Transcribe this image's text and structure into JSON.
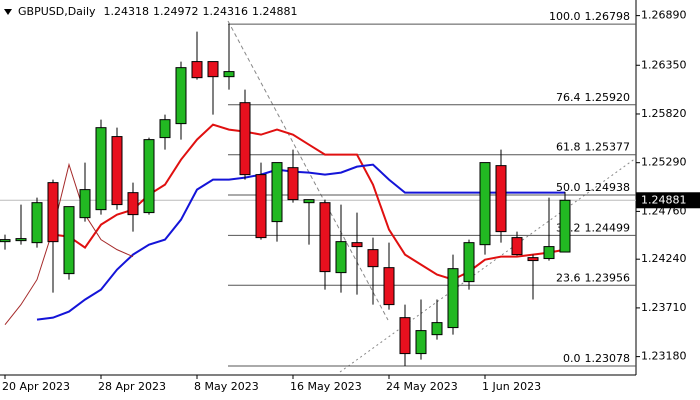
{
  "chart_data": {
    "type": "candlestick",
    "symbol": "GBPUSD,Daily",
    "categories": [
      "20 Apr 2023",
      null,
      null,
      null,
      null,
      null,
      "28 Apr 2023",
      null,
      null,
      null,
      null,
      null,
      "8 May 2023",
      null,
      null,
      null,
      null,
      null,
      "16 May 2023",
      null,
      null,
      null,
      null,
      null,
      "24 May 2023",
      null,
      null,
      null,
      null,
      null,
      "1 Jun 2023",
      null,
      null,
      null,
      null,
      null
    ],
    "open": [
      1.24431,
      1.24442,
      1.2442,
      1.25073,
      1.24083,
      1.24692,
      1.24779,
      1.25574,
      1.24964,
      1.24747,
      1.25563,
      1.25715,
      1.2639,
      1.2639,
      1.26226,
      1.25943,
      1.2516,
      1.24649,
      1.25236,
      1.24855,
      1.24855,
      1.24094,
      1.2442,
      1.24344,
      1.24148,
      1.23604,
      1.23213,
      1.23419,
      1.23496,
      1.23996,
      1.24398,
      1.25258,
      1.24475,
      1.24257,
      1.24247,
      1.24318
    ],
    "high": [
      1.24507,
      1.24834,
      1.2491,
      1.25106,
      1.24812,
      1.25291,
      1.25758,
      1.25671,
      1.25073,
      1.25563,
      1.25813,
      1.2639,
      1.26716,
      1.2639,
      1.26798,
      1.26085,
      1.25291,
      1.25291,
      1.25432,
      1.24888,
      1.24888,
      1.24834,
      1.24747,
      1.24475,
      1.2442,
      1.23746,
      1.23801,
      1.23801,
      1.2429,
      1.24453,
      1.25291,
      1.25432,
      1.2454,
      1.2429,
      1.2491,
      1.24972
    ],
    "low": [
      1.24344,
      1.24398,
      1.24366,
      1.23876,
      1.24018,
      1.24649,
      1.24725,
      1.24779,
      1.2454,
      1.24725,
      1.25432,
      1.25541,
      1.26194,
      1.25813,
      1.26085,
      1.25106,
      1.24453,
      1.24431,
      1.24855,
      1.24398,
      1.23909,
      1.23876,
      1.23855,
      1.23746,
      1.23691,
      1.23078,
      1.23147,
      1.23365,
      1.23419,
      1.23909,
      1.2429,
      1.2442,
      1.24279,
      1.23801,
      1.24225,
      1.24316
    ],
    "close": [
      1.24453,
      1.24464,
      1.24855,
      1.24431,
      1.24812,
      1.24997,
      1.25671,
      1.24834,
      1.24725,
      1.25541,
      1.25758,
      1.26324,
      1.26215,
      1.26226,
      1.26281,
      1.2516,
      1.24475,
      1.25291,
      1.24888,
      1.24888,
      1.24105,
      1.24431,
      1.24377,
      1.24159,
      1.23746,
      1.23213,
      1.23463,
      1.2355,
      1.24137,
      1.2442,
      1.25291,
      1.2454,
      1.2429,
      1.24225,
      1.24377,
      1.24881
    ],
    "up_color": "#22b822",
    "down_color": "#e8101e",
    "lines": [
      {
        "color": "#e01010",
        "values": [
          null,
          null,
          null,
          1.24507,
          1.24486,
          1.24366,
          1.24616,
          1.24725,
          1.24779,
          1.24942,
          1.25051,
          1.25323,
          1.25541,
          1.25704,
          1.2565,
          1.25628,
          1.25595,
          1.2565,
          1.25595,
          1.25486,
          1.25378,
          1.25378,
          1.25378,
          1.25051,
          1.24562,
          1.2429,
          1.24181,
          1.24072,
          1.24018,
          1.24105,
          1.24235,
          1.24268,
          1.24268,
          1.2429,
          1.24311,
          1.24344
        ]
      },
      {
        "color": "#1414d8",
        "values": [
          null,
          null,
          1.23582,
          1.23604,
          1.2367,
          1.238,
          1.23909,
          1.24126,
          1.2429,
          1.24398,
          1.24453,
          1.2467,
          1.24997,
          1.25106,
          1.25106,
          1.25127,
          1.2516,
          1.25214,
          1.25193,
          1.25182,
          1.2516,
          1.25182,
          1.25247,
          1.25269,
          1.25106,
          1.24964,
          1.24964,
          1.24964,
          1.24964,
          1.24964,
          1.24964,
          1.24964,
          1.24964,
          1.24964,
          1.24964,
          1.24964
        ]
      },
      {
        "color": "#a52a2a",
        "values": [
          1.23528,
          1.23746,
          1.24018,
          1.24562,
          1.25269,
          1.24725,
          1.24453,
          1.24344,
          1.24268,
          null,
          null,
          null,
          null,
          null,
          null,
          null,
          null,
          null,
          null,
          null,
          null,
          null,
          null,
          null,
          null,
          null,
          null,
          null,
          null,
          null,
          null,
          null,
          null,
          null,
          null,
          null
        ]
      }
    ],
    "fib_levels": [
      {
        "level": "100.0",
        "value": 1.26798
      },
      {
        "level": "76.4",
        "value": {
          "value": 1.2592,
          "label": "1.25920"
        }
      },
      {
        "level": "61.8",
        "value": 1.25377
      },
      {
        "level": "50.0",
        "value": 1.24938
      },
      {
        "level": "38.2",
        "value": 1.24499
      },
      {
        "level": "23.6",
        "value": 1.23956
      },
      {
        "level": "0.0",
        "value": 1.23078
      }
    ],
    "ylim": [
      1.2298,
      1.2706
    ],
    "yticks": [
      {
        "value": 1.2689,
        "label": "1.26890"
      },
      {
        "value": 1.2635,
        "label": "1.26350"
      },
      {
        "value": 1.2582,
        "label": "1.25820"
      },
      {
        "value": 1.2529,
        "label": "1.25290"
      },
      {
        "value": 1.2476,
        "label": "1.24760"
      },
      {
        "value": 1.2424,
        "label": "1.24240"
      },
      {
        "value": 1.2371,
        "label": "1.23710"
      },
      {
        "value": 1.2318,
        "label": "1.23180"
      }
    ]
  }
}
